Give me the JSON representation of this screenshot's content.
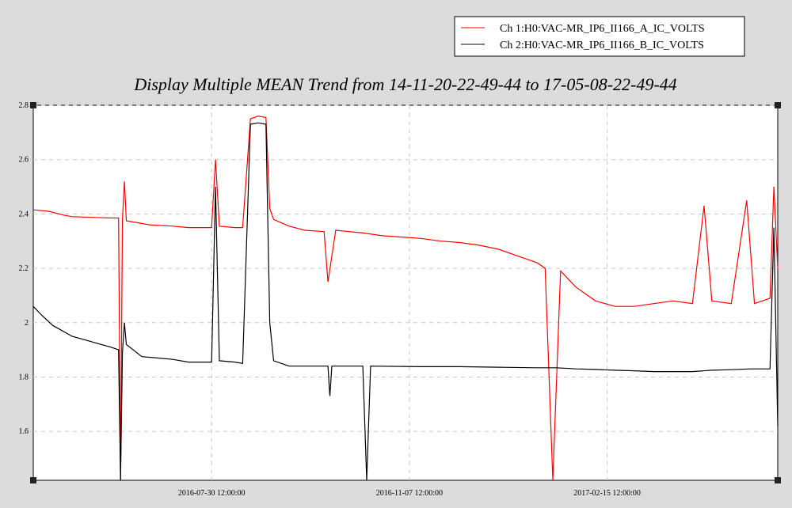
{
  "chart_data": {
    "type": "line",
    "title": "Display Multiple MEAN Trend from 14-11-20-22-49-44 to 17-05-08-22-49-44",
    "xlabel": "",
    "ylabel": "",
    "ylim": [
      1.42,
      2.8
    ],
    "y_ticks": [
      1.6,
      1.8,
      2,
      2.2,
      2.4,
      2.6,
      2.8
    ],
    "y_tick_labels": [
      "1.6",
      "1.8",
      "2",
      "2.2",
      "2.4",
      "2.6",
      "2.8"
    ],
    "x_ticks": [
      "2016-07-30 12:00:00",
      "2016-11-07 12:00:00",
      "2017-02-15 12:00:00"
    ],
    "grid": true,
    "legend_position": "top-right",
    "series": [
      {
        "name": "Ch 1:H0:VAC-MR_IP6_II166_A_IC_VOLTS",
        "color": "#ff0000",
        "points": [
          [
            0.0,
            2.415
          ],
          [
            0.04,
            2.41
          ],
          [
            0.08,
            2.395
          ],
          [
            0.1,
            2.39
          ],
          [
            0.2,
            2.385
          ],
          [
            0.22,
            2.385
          ],
          [
            0.225,
            1.42
          ],
          [
            0.23,
            2.38
          ],
          [
            0.235,
            2.52
          ],
          [
            0.24,
            2.375
          ],
          [
            0.3,
            2.36
          ],
          [
            0.36,
            2.355
          ],
          [
            0.4,
            2.35
          ],
          [
            0.46,
            2.35
          ],
          [
            0.47,
            2.6
          ],
          [
            0.48,
            2.355
          ],
          [
            0.52,
            2.35
          ],
          [
            0.54,
            2.35
          ],
          [
            0.56,
            2.75
          ],
          [
            0.58,
            2.76
          ],
          [
            0.6,
            2.755
          ],
          [
            0.61,
            2.42
          ],
          [
            0.62,
            2.38
          ],
          [
            0.66,
            2.355
          ],
          [
            0.7,
            2.34
          ],
          [
            0.75,
            2.335
          ],
          [
            0.76,
            2.15
          ],
          [
            0.78,
            2.34
          ],
          [
            0.85,
            2.33
          ],
          [
            0.9,
            2.32
          ],
          [
            1.0,
            2.31
          ],
          [
            1.05,
            2.3
          ],
          [
            1.1,
            2.295
          ],
          [
            1.15,
            2.285
          ],
          [
            1.2,
            2.27
          ],
          [
            1.26,
            2.24
          ],
          [
            1.3,
            2.22
          ],
          [
            1.32,
            2.2
          ],
          [
            1.34,
            1.42
          ],
          [
            1.36,
            2.19
          ],
          [
            1.4,
            2.13
          ],
          [
            1.45,
            2.08
          ],
          [
            1.5,
            2.06
          ],
          [
            1.55,
            2.06
          ],
          [
            1.6,
            2.07
          ],
          [
            1.65,
            2.08
          ],
          [
            1.7,
            2.07
          ],
          [
            1.73,
            2.43
          ],
          [
            1.75,
            2.08
          ],
          [
            1.8,
            2.07
          ],
          [
            1.84,
            2.45
          ],
          [
            1.86,
            2.07
          ],
          [
            1.88,
            2.08
          ],
          [
            1.9,
            2.09
          ],
          [
            1.91,
            2.5
          ],
          [
            1.92,
            2.2
          ]
        ]
      },
      {
        "name": "Ch 2:H0:VAC-MR_IP6_II166_B_IC_VOLTS",
        "color": "#000000",
        "points": [
          [
            0.0,
            2.06
          ],
          [
            0.02,
            2.03
          ],
          [
            0.05,
            1.99
          ],
          [
            0.1,
            1.95
          ],
          [
            0.15,
            1.93
          ],
          [
            0.2,
            1.91
          ],
          [
            0.22,
            1.9
          ],
          [
            0.225,
            1.42
          ],
          [
            0.23,
            1.89
          ],
          [
            0.235,
            2.0
          ],
          [
            0.24,
            1.92
          ],
          [
            0.28,
            1.875
          ],
          [
            0.32,
            1.87
          ],
          [
            0.36,
            1.865
          ],
          [
            0.4,
            1.855
          ],
          [
            0.46,
            1.855
          ],
          [
            0.47,
            2.5
          ],
          [
            0.48,
            1.86
          ],
          [
            0.52,
            1.855
          ],
          [
            0.54,
            1.85
          ],
          [
            0.56,
            2.73
          ],
          [
            0.58,
            2.735
          ],
          [
            0.6,
            2.73
          ],
          [
            0.61,
            2.0
          ],
          [
            0.62,
            1.86
          ],
          [
            0.66,
            1.84
          ],
          [
            0.7,
            1.84
          ],
          [
            0.76,
            1.84
          ],
          [
            0.765,
            1.73
          ],
          [
            0.77,
            1.84
          ],
          [
            0.85,
            1.84
          ],
          [
            0.86,
            1.42
          ],
          [
            0.87,
            1.84
          ],
          [
            1.0,
            1.838
          ],
          [
            1.1,
            1.838
          ],
          [
            1.2,
            1.836
          ],
          [
            1.3,
            1.834
          ],
          [
            1.35,
            1.834
          ],
          [
            1.4,
            1.83
          ],
          [
            1.45,
            1.828
          ],
          [
            1.5,
            1.825
          ],
          [
            1.55,
            1.823
          ],
          [
            1.6,
            1.82
          ],
          [
            1.65,
            1.82
          ],
          [
            1.7,
            1.82
          ],
          [
            1.75,
            1.825
          ],
          [
            1.8,
            1.827
          ],
          [
            1.85,
            1.83
          ],
          [
            1.88,
            1.83
          ],
          [
            1.9,
            1.83
          ],
          [
            1.91,
            2.35
          ],
          [
            1.92,
            1.62
          ]
        ]
      }
    ]
  }
}
